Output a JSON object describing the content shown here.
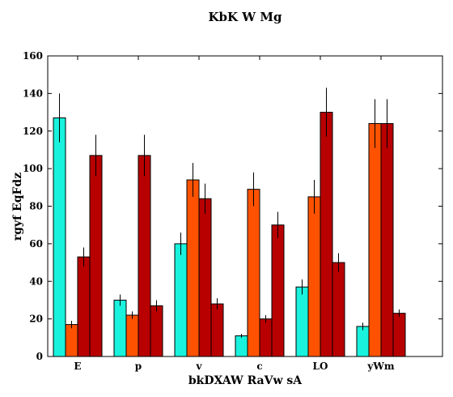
{
  "chart_data": {
    "type": "bar",
    "title": "KbK  W Mg",
    "xlabel": "bkDXAW RaVw sA",
    "ylabel": "rgyf EqFdz",
    "categories": [
      "E",
      "p",
      "v",
      "c",
      "LO",
      "yWm"
    ],
    "ylim": [
      0,
      160
    ],
    "yticks": [
      0,
      20,
      40,
      60,
      80,
      100,
      120,
      140,
      160
    ],
    "grid": false,
    "legend": "none",
    "series": [
      {
        "color": "#19f2dc",
        "values": [
          127,
          30,
          60,
          11,
          37,
          16
        ],
        "errors": [
          13,
          3,
          6,
          1,
          4,
          2
        ]
      },
      {
        "color": "#ff5200",
        "values": [
          17,
          22,
          94,
          89,
          85,
          124
        ],
        "errors": [
          2,
          2,
          9,
          9,
          9,
          13
        ]
      },
      {
        "color": "#b80000",
        "values": [
          53,
          107,
          84,
          20,
          130,
          124
        ],
        "errors": [
          5,
          11,
          8,
          2,
          13,
          13
        ]
      },
      {
        "color": "#b80000",
        "values": [
          107,
          27,
          28,
          70,
          50,
          23
        ],
        "errors": [
          11,
          3,
          3,
          7,
          5,
          2
        ]
      }
    ]
  }
}
